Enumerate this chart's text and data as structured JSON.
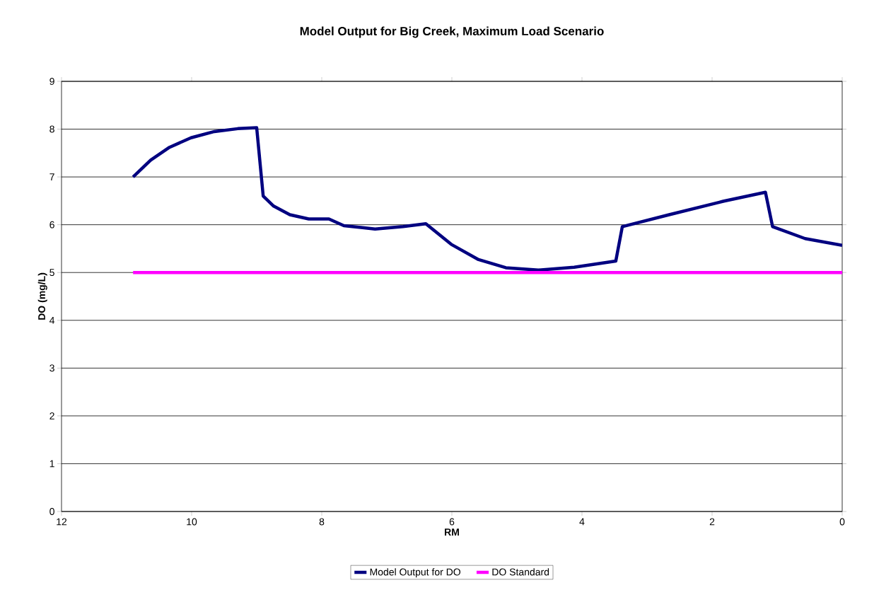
{
  "chart_data": {
    "type": "line",
    "title": "Model Output for Big Creek, Maximum Load Scenario",
    "xlabel": "RM",
    "ylabel": "DO (mg/L)",
    "xlim": [
      12,
      0
    ],
    "xticks": [
      12,
      10,
      8,
      6,
      4,
      2,
      0
    ],
    "ylim": [
      0,
      9
    ],
    "yticks": [
      0,
      1,
      2,
      3,
      4,
      5,
      6,
      7,
      8,
      9
    ],
    "grid": "y",
    "legend": "bottom",
    "marker": "none",
    "line_style": "solid",
    "series": [
      {
        "name": "Model Output for DO",
        "color": "#000080",
        "x": [
          10.9,
          10.63,
          10.34,
          10.01,
          9.65,
          9.29,
          9.0,
          8.9,
          8.74,
          8.49,
          8.2,
          7.89,
          7.66,
          7.18,
          6.75,
          6.4,
          6.01,
          5.59,
          5.17,
          4.67,
          4.12,
          3.48,
          3.38,
          2.66,
          1.83,
          1.18,
          1.07,
          0.57,
          0
        ],
        "values": [
          7.0,
          7.35,
          7.62,
          7.82,
          7.95,
          8.01,
          8.03,
          6.6,
          6.39,
          6.21,
          6.12,
          6.12,
          5.98,
          5.91,
          5.96,
          6.02,
          5.59,
          5.27,
          5.1,
          5.05,
          5.11,
          5.24,
          5.96,
          6.21,
          6.49,
          6.68,
          5.96,
          5.71,
          5.57
        ]
      },
      {
        "name": "DO Standard",
        "color": "#ff00ff",
        "x": [
          10.9,
          0
        ],
        "values": [
          5,
          5
        ]
      }
    ]
  }
}
